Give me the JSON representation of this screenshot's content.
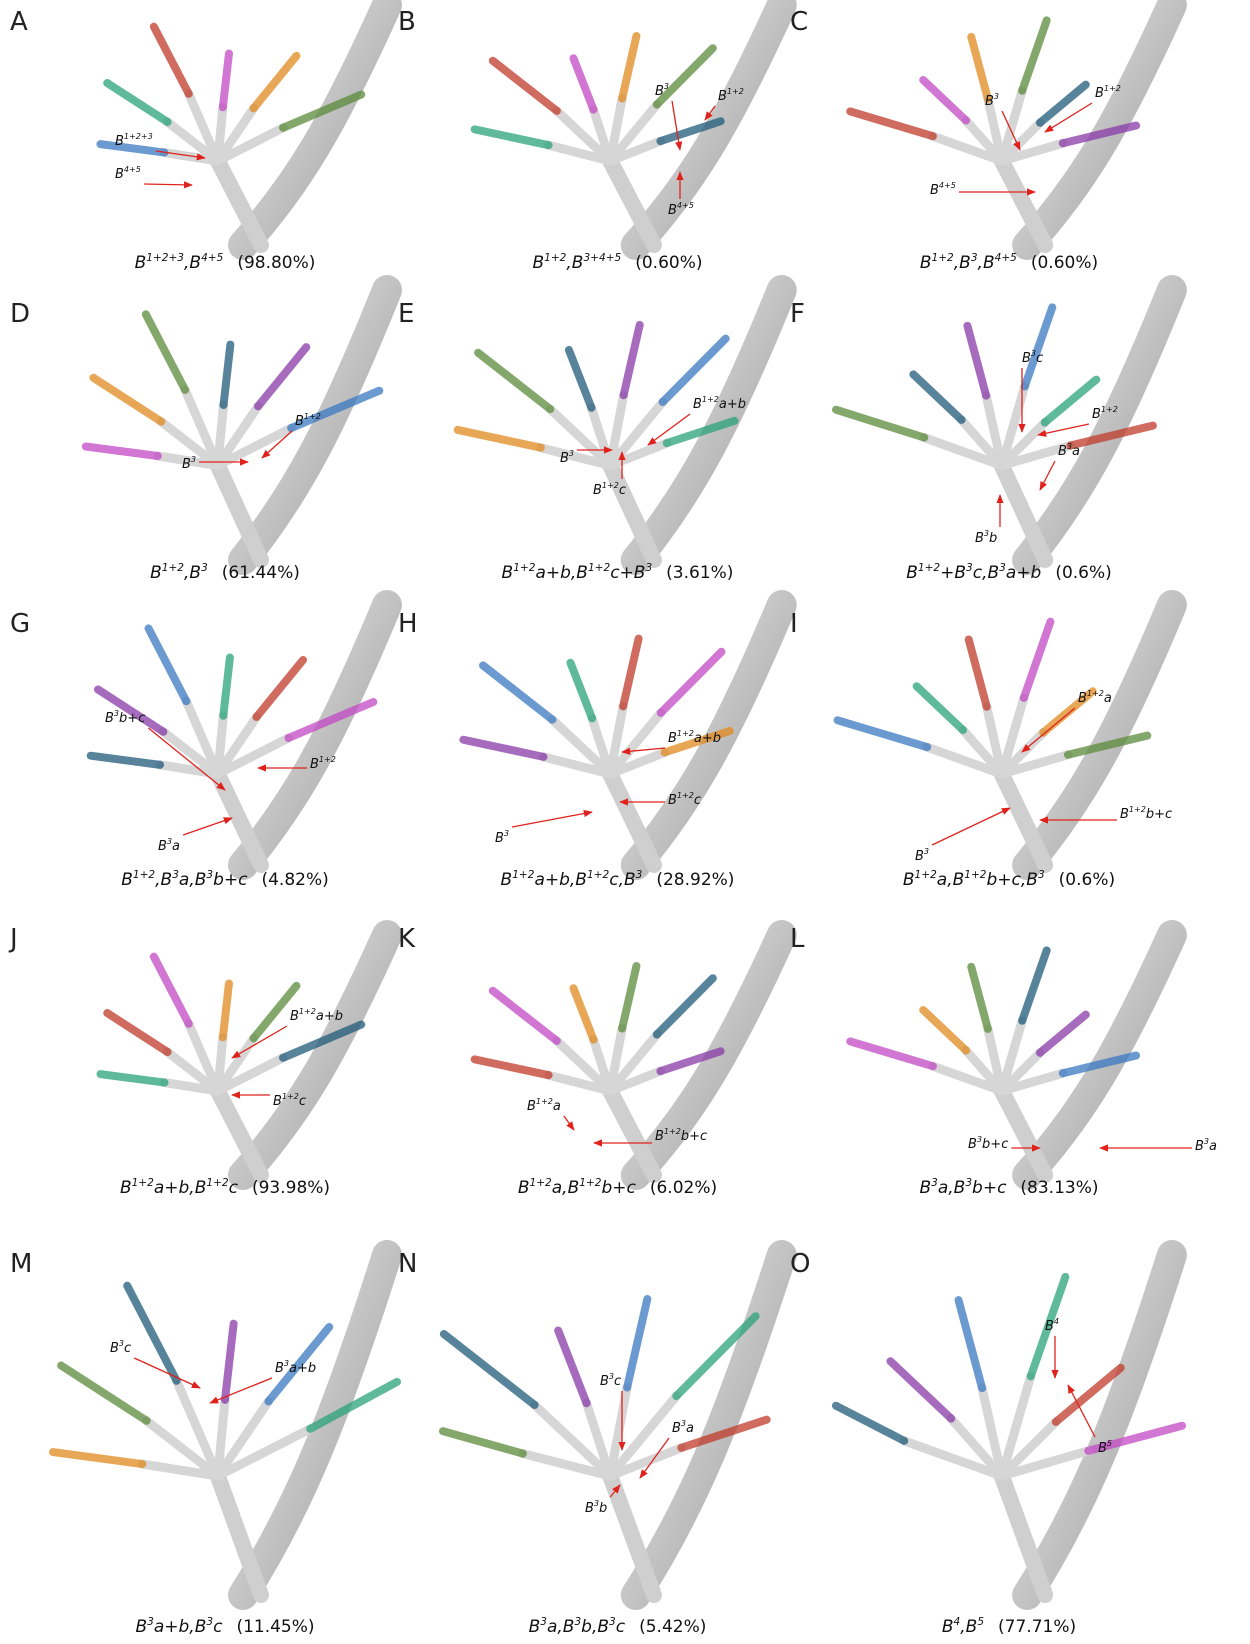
{
  "panels": [
    {
      "letter": "A",
      "caption": [
        "B",
        "1+2+3",
        ",B",
        "4+5"
      ],
      "percent": "(98.80%)",
      "labels": [
        [
          "B",
          "1+2+3"
        ],
        [
          "B",
          "4+5"
        ]
      ]
    },
    {
      "letter": "B",
      "caption": [
        "B",
        "1+2",
        ",B",
        "3+4+5"
      ],
      "percent": "(0.60%)",
      "labels": [
        [
          "B",
          "3"
        ],
        [
          "B",
          "1+2"
        ],
        [
          "B",
          "4+5"
        ]
      ]
    },
    {
      "letter": "C",
      "caption": [
        "B",
        "1+2",
        ",B",
        "3",
        ",B",
        "4+5"
      ],
      "percent": "(0.60%)",
      "labels": [
        [
          "B",
          "3"
        ],
        [
          "B",
          "1+2"
        ],
        [
          "B",
          "4+5"
        ]
      ]
    },
    {
      "letter": "D",
      "caption": [
        "B",
        "1+2",
        ",B",
        "3"
      ],
      "percent": "(61.44%)",
      "labels": [
        [
          "B",
          "1+2"
        ],
        [
          "B",
          "3"
        ]
      ]
    },
    {
      "letter": "E",
      "caption": [
        "B",
        "1+2",
        "a+b,B",
        "1+2",
        "c+B",
        "3"
      ],
      "percent": "(3.61%)",
      "labels": [
        [
          "B",
          "1+2",
          "a+b"
        ],
        [
          "B",
          "3"
        ],
        [
          "B",
          "1+2",
          "c"
        ]
      ]
    },
    {
      "letter": "F",
      "caption": [
        "B",
        "1+2",
        "+B",
        "3",
        "c,B",
        "3",
        "a+b"
      ],
      "percent": "(0.6%)",
      "labels": [
        [
          "B",
          "3",
          "c"
        ],
        [
          "B",
          "1+2"
        ],
        [
          "B",
          "3",
          "a"
        ],
        [
          "B",
          "3",
          "b"
        ]
      ]
    },
    {
      "letter": "G",
      "caption": [
        "B",
        "1+2",
        ",B",
        "3",
        "a,B",
        "3",
        "b+c"
      ],
      "percent": "(4.82%)",
      "labels": [
        [
          "B",
          "3",
          "b+c"
        ],
        [
          "B",
          "1+2"
        ],
        [
          "B",
          "3",
          "a"
        ]
      ]
    },
    {
      "letter": "H",
      "caption": [
        "B",
        "1+2",
        "a+b,B",
        "1+2",
        "c,B",
        "3"
      ],
      "percent": "(28.92%)",
      "labels": [
        [
          "B",
          "1+2",
          "a+b"
        ],
        [
          "B",
          "3"
        ],
        [
          "B",
          "1+2",
          "c"
        ]
      ]
    },
    {
      "letter": "I",
      "caption": [
        "B",
        "1+2",
        "a,B",
        "1+2",
        "b+c,B",
        "3"
      ],
      "percent": "(0.6%)",
      "labels": [
        [
          "B",
          "1+2",
          "a"
        ],
        [
          "B",
          "1+2",
          "b+c"
        ],
        [
          "B",
          "3"
        ]
      ]
    },
    {
      "letter": "J",
      "caption": [
        "B",
        "1+2",
        "a+b,B",
        "1+2",
        "c"
      ],
      "percent": "(93.98%)",
      "labels": [
        [
          "B",
          "1+2",
          "a+b"
        ],
        [
          "B",
          "1+2",
          "c"
        ]
      ]
    },
    {
      "letter": "K",
      "caption": [
        "B",
        "1+2",
        "a,B",
        "1+2",
        "b+c"
      ],
      "percent": "(6.02%)",
      "labels": [
        [
          "B",
          "1+2",
          "a"
        ],
        [
          "B",
          "1+2",
          "b+c"
        ]
      ]
    },
    {
      "letter": "L",
      "caption": [
        "B",
        "3",
        "a,B",
        "3",
        "b+c"
      ],
      "percent": "(83.13%)",
      "labels": [
        [
          "B",
          "3",
          "b+c"
        ],
        [
          "B",
          "3",
          "a"
        ]
      ]
    },
    {
      "letter": "M",
      "caption": [
        "B",
        "3",
        "a+b,B",
        "3",
        "c"
      ],
      "percent": "(11.45%)",
      "labels": [
        [
          "B",
          "3",
          "c"
        ],
        [
          "B",
          "3",
          "a+b"
        ]
      ]
    },
    {
      "letter": "N",
      "caption": [
        "B",
        "3",
        "a,B",
        "3",
        "b,B",
        "3",
        "c"
      ],
      "percent": "(5.42%)",
      "labels": [
        [
          "B",
          "3",
          "c"
        ],
        [
          "B",
          "3",
          "a"
        ],
        [
          "B",
          "3",
          "b"
        ]
      ]
    },
    {
      "letter": "O",
      "caption": [
        "B",
        "4",
        ",B",
        "5"
      ],
      "percent": "(77.71%)",
      "labels": [
        [
          "B",
          "4"
        ],
        [
          "B",
          "5"
        ]
      ]
    }
  ]
}
